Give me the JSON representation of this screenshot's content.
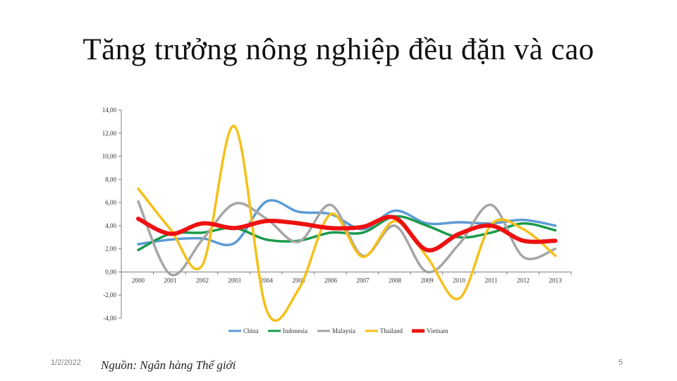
{
  "slide": {
    "title": "Tăng trưởng nông nghiệp đều đặn và cao",
    "date": "1/2/2022",
    "source": "Nguồn: Ngân hàng Thế giới",
    "page_number": "5"
  },
  "chart_data": {
    "type": "line",
    "title": "",
    "xlabel": "",
    "ylabel": "",
    "ylim": [
      -4,
      14
    ],
    "yticks": [
      14,
      12,
      10,
      8,
      6,
      4,
      2,
      0,
      -2,
      -4
    ],
    "ytick_labels": [
      "14,00",
      "12,00",
      "10,00",
      "8,00",
      "6,00",
      "4,00",
      "2,00",
      "0,00",
      "-2,00",
      "-4,00"
    ],
    "categories": [
      "2000",
      "2001",
      "2002",
      "2003",
      "2004",
      "2005",
      "2006",
      "2007",
      "2008",
      "2009",
      "2010",
      "2011",
      "2012",
      "2013"
    ],
    "legend_position": "bottom",
    "grid": false,
    "smooth": true,
    "series": [
      {
        "name": "China",
        "color": "#5b9bd5",
        "values": [
          2.4,
          2.8,
          2.9,
          2.5,
          6.1,
          5.2,
          5.0,
          3.7,
          5.3,
          4.2,
          4.3,
          4.2,
          4.5,
          4.0
        ]
      },
      {
        "name": "Indonesia",
        "color": "#1a9a4a",
        "values": [
          1.9,
          3.3,
          3.4,
          3.8,
          2.8,
          2.7,
          3.4,
          3.4,
          4.8,
          4.0,
          3.0,
          3.4,
          4.2,
          3.6
        ]
      },
      {
        "name": "Malaysia",
        "color": "#a5a5a5",
        "values": [
          6.1,
          -0.2,
          2.8,
          5.9,
          4.6,
          2.6,
          5.8,
          1.4,
          4.0,
          0.0,
          2.4,
          5.8,
          1.3,
          2.0
        ]
      },
      {
        "name": "Thailand",
        "color": "#f5c018",
        "values": [
          7.2,
          3.7,
          0.6,
          12.6,
          -3.3,
          -1.5,
          5.0,
          1.3,
          4.4,
          1.3,
          -2.3,
          4.1,
          3.7,
          1.4
        ]
      },
      {
        "name": "Vietnam",
        "color": "#ee1111",
        "values": [
          4.6,
          3.3,
          4.2,
          3.8,
          4.4,
          4.2,
          3.8,
          3.9,
          4.7,
          1.9,
          3.3,
          4.0,
          2.7,
          2.7
        ]
      }
    ]
  }
}
